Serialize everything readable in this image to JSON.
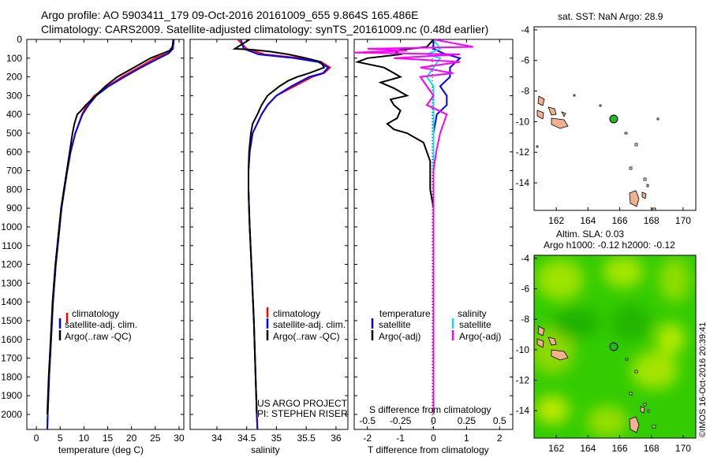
{
  "header": {
    "line1": "Argo profile: AO 5903411_179 09-Oct-2016 20161009_655 9.864S 165.486E",
    "line2": "Climatology: CARS2009. Satellite-adjusted climatology: synTS_20161009.nc (0.48d earlier)"
  },
  "depth_ticks": [
    "0",
    "100",
    "200",
    "300",
    "400",
    "500",
    "600",
    "700",
    "800",
    "900",
    "1000",
    "1100",
    "1200",
    "1300",
    "1400",
    "1500",
    "1600",
    "1700",
    "1800",
    "1900",
    "2000"
  ],
  "legend": {
    "clim": "climatology",
    "sat": "satellite-adj. clim.",
    "argo": "Argo(..raw -QC)"
  },
  "diff_legend": {
    "temp_head": "temperature",
    "sal_head": "salinity",
    "satellite": "satellite",
    "argo": "Argo(-adj)"
  },
  "credit": {
    "line1": "US ARGO PROJECT",
    "line2": "PI: STEPHEN RISER"
  },
  "map_top": {
    "title": "sat. SST: NaN Argo: 28.9",
    "xticks": [
      "162",
      "164",
      "166",
      "168",
      "170"
    ],
    "yticks": [
      "-4",
      "-6",
      "-8",
      "-10",
      "-12",
      "-14"
    ]
  },
  "map_bottom": {
    "title1": "Altim. SLA: 0.03",
    "title2": "Argo h1000: -0.12 h2000: -0.12",
    "xticks": [
      "162",
      "164",
      "166",
      "168",
      "170"
    ],
    "yticks": [
      "-4",
      "-6",
      "-8",
      "-10",
      "-12",
      "-14"
    ]
  },
  "watermark": "©IMOS 16-Oct-2016 20:39:41",
  "colors": {
    "climatology": "#ff0000",
    "satellite": "#0000ff",
    "argo": "#000000",
    "sal_satellite": "#00e5ee",
    "sal_argo": "#ff00ff",
    "land": "#f2b08f",
    "float": "#22bb22"
  },
  "chart_data": [
    {
      "type": "line",
      "title": "",
      "xlabel": "temperature (deg C)",
      "ylabel": "",
      "xlim": [
        -2,
        31
      ],
      "ylim": [
        2080,
        0
      ],
      "xticks": [
        "0",
        "5",
        "10",
        "15",
        "20",
        "25",
        "30"
      ],
      "series": [
        {
          "name": "climatology",
          "color": "#ff0000",
          "depth": [
            0,
            50,
            75,
            100,
            150,
            200,
            250,
            300,
            350,
            400,
            500,
            600,
            700,
            800,
            900,
            1000,
            1200,
            1400,
            1600,
            1800,
            2000,
            2080
          ],
          "values": [
            28.9,
            28.7,
            27.5,
            25.0,
            21.5,
            18.0,
            15.0,
            12.2,
            10.6,
            9.6,
            8.2,
            7.2,
            6.5,
            5.9,
            5.3,
            4.9,
            4.1,
            3.5,
            3.1,
            2.7,
            2.4,
            2.3
          ]
        },
        {
          "name": "satellite-adj. clim.",
          "color": "#0000ff",
          "depth": [
            0,
            50,
            75,
            100,
            150,
            200,
            250,
            300,
            350,
            400,
            500,
            600,
            700,
            800,
            900,
            1000,
            1200,
            1400,
            1600,
            1800,
            2000,
            2080
          ],
          "values": [
            28.9,
            28.7,
            27.8,
            25.8,
            22.0,
            18.5,
            15.2,
            12.6,
            11.0,
            9.7,
            8.2,
            7.2,
            6.5,
            5.9,
            5.3,
            4.9,
            4.1,
            3.5,
            3.1,
            2.7,
            2.4,
            2.3
          ]
        },
        {
          "name": "Argo(..raw -QC)",
          "color": "#000000",
          "depth": [
            0,
            40,
            50,
            60,
            80,
            100,
            150,
            200,
            250,
            300,
            350,
            380,
            400,
            450,
            500,
            600,
            700,
            800,
            900,
            1000,
            1200,
            1400,
            1600,
            1800,
            2000
          ],
          "values": [
            28.8,
            28.6,
            28.3,
            28.0,
            26.0,
            24.0,
            20.5,
            17.0,
            14.5,
            12.5,
            10.4,
            9.4,
            8.6,
            8.0,
            7.6,
            7.0,
            6.4,
            5.8,
            5.2,
            4.8,
            4.0,
            3.4,
            3.0,
            2.6,
            2.3
          ]
        }
      ]
    },
    {
      "type": "line",
      "title": "",
      "xlabel": "salinity",
      "ylabel": "",
      "xlim": [
        33.55,
        36.2
      ],
      "ylim": [
        2080,
        0
      ],
      "xticks": [
        "34",
        "34.5",
        "35",
        "35.5",
        "36"
      ],
      "series": [
        {
          "name": "climatology",
          "color": "#ff0000",
          "depth": [
            0,
            50,
            80,
            100,
            120,
            150,
            180,
            200,
            250,
            300,
            350,
            400,
            500,
            600,
            700,
            800,
            900,
            1000,
            1200,
            1500,
            1800,
            2000,
            2080
          ],
          "values": [
            34.35,
            34.5,
            34.8,
            35.4,
            35.75,
            35.9,
            35.8,
            35.6,
            35.3,
            35.0,
            34.85,
            34.75,
            34.6,
            34.55,
            34.53,
            34.53,
            34.54,
            34.55,
            34.58,
            34.62,
            34.65,
            34.67,
            34.68
          ]
        },
        {
          "name": "satellite-adj. clim.",
          "color": "#0000ff",
          "depth": [
            0,
            50,
            80,
            100,
            120,
            150,
            180,
            200,
            250,
            300,
            350,
            400,
            500,
            600,
            700,
            800,
            900,
            1000,
            1200,
            1500,
            1800,
            2000,
            2080
          ],
          "values": [
            34.4,
            34.45,
            34.7,
            35.3,
            35.7,
            35.87,
            35.78,
            35.55,
            35.25,
            35.0,
            34.85,
            34.75,
            34.6,
            34.55,
            34.53,
            34.53,
            34.54,
            34.55,
            34.58,
            34.62,
            34.65,
            34.67,
            34.68
          ]
        },
        {
          "name": "Argo(..raw -QC)",
          "color": "#000000",
          "depth": [
            0,
            50,
            55,
            65,
            80,
            100,
            120,
            150,
            180,
            200,
            220,
            250,
            300,
            350,
            400,
            450,
            500,
            600,
            700,
            800,
            900,
            1000,
            1200,
            1500,
            1800,
            2000
          ],
          "values": [
            34.55,
            34.3,
            34.6,
            34.9,
            35.2,
            35.5,
            35.75,
            35.8,
            35.55,
            35.35,
            35.2,
            35.05,
            34.85,
            34.75,
            34.68,
            34.6,
            34.57,
            34.54,
            34.53,
            34.53,
            34.54,
            34.55,
            34.58,
            34.62,
            34.65,
            34.67
          ]
        }
      ]
    },
    {
      "type": "line",
      "title": "",
      "xlabel": "T difference from climatology",
      "x2label": "S difference from climatology",
      "xlim": [
        -2.4,
        2.4
      ],
      "ylim": [
        2080,
        0
      ],
      "xticks": [
        "-2",
        "-1",
        "0",
        "1",
        "2"
      ],
      "x2ticks": [
        "-0.5",
        "-0.25",
        "0",
        "0.25",
        "0.5"
      ],
      "series": [
        {
          "name": "temperature satellite",
          "color": "#0000ff",
          "depth": [
            0,
            50,
            75,
            100,
            150,
            200,
            250,
            300,
            350,
            400,
            500,
            700,
            1000,
            1500,
            2000
          ],
          "values": [
            0,
            0,
            0.3,
            0.8,
            0.5,
            0.5,
            0.2,
            0.4,
            0.4,
            0.1,
            0,
            0,
            0,
            0,
            0
          ]
        },
        {
          "name": "temperature Argo(-adj)",
          "color": "#000000",
          "depth": [
            0,
            40,
            60,
            80,
            100,
            120,
            150,
            180,
            200,
            230,
            260,
            300,
            320,
            350,
            380,
            420,
            450,
            480,
            500,
            550,
            600,
            650,
            700,
            800,
            900,
            1000,
            1200,
            1500,
            1800,
            2000
          ],
          "values": [
            0,
            -0.2,
            -1.2,
            -1.0,
            -2.0,
            -2.3,
            -1.5,
            -1.2,
            -1.0,
            -1.6,
            -1.2,
            -0.8,
            -1.3,
            -1.2,
            -1.0,
            -1.1,
            -1.4,
            -1.2,
            -0.8,
            -0.3,
            -0.2,
            -0.1,
            -0.1,
            -0.1,
            0,
            0,
            0,
            0,
            0,
            0
          ]
        },
        {
          "name": "salinity satellite",
          "color": "#00e5ee",
          "depth": [
            0,
            50,
            80,
            100,
            150,
            200,
            250,
            300,
            400,
            500,
            700,
            1000,
            1500,
            2000
          ],
          "values": [
            0,
            0.05,
            -0.05,
            0.05,
            0,
            -0.05,
            0,
            0,
            0,
            0,
            0,
            0,
            0,
            0
          ]
        },
        {
          "name": "salinity Argo(-adj)",
          "color": "#ff00ff",
          "depth": [
            0,
            40,
            50,
            60,
            70,
            80,
            100,
            120,
            150,
            180,
            200,
            250,
            300,
            350,
            400,
            500,
            600,
            700,
            800,
            1000,
            1500,
            2000
          ],
          "values": [
            0,
            0.3,
            -0.5,
            -0.2,
            -0.6,
            0.2,
            -0.3,
            0.2,
            -0.1,
            0.15,
            -0.1,
            -0.05,
            0,
            -0.05,
            0.1,
            0.05,
            0.02,
            0,
            0,
            0,
            0,
            0
          ]
        }
      ]
    }
  ]
}
